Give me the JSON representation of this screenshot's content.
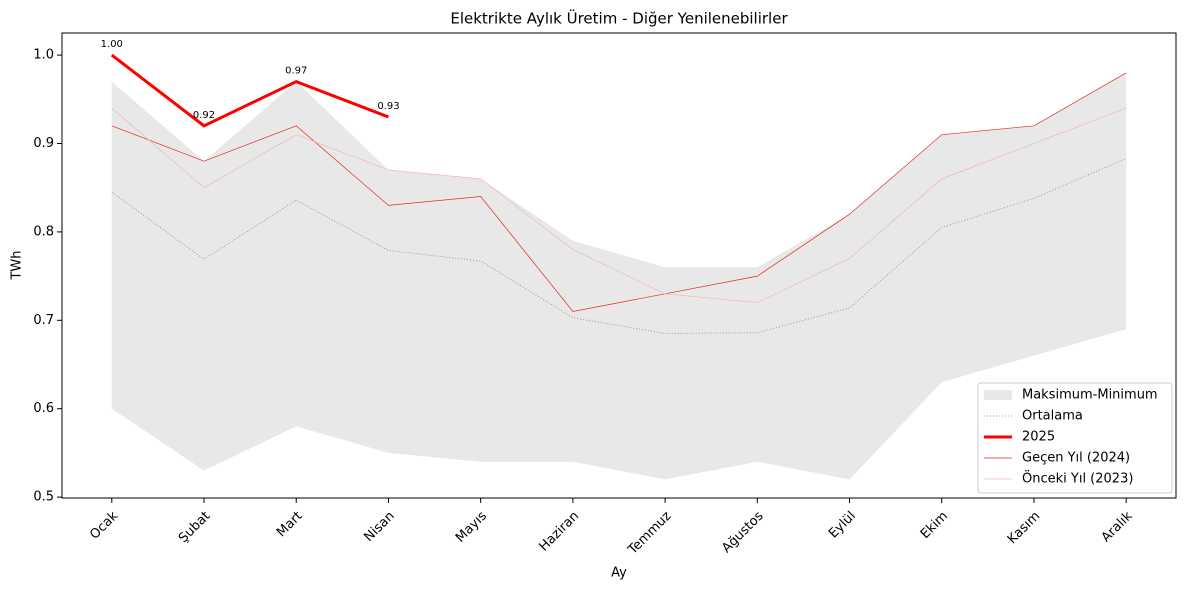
{
  "chart_data": {
    "type": "line",
    "title": "Elektrikte Aylık Üretim - Diğer Yenilenebilirler",
    "x_label": "Ay",
    "y_label": "TWh",
    "categories": [
      "Ocak",
      "Şubat",
      "Mart",
      "Nisan",
      "Mayıs",
      "Haziran",
      "Temmuz",
      "Ağustos",
      "Eylül",
      "Ekim",
      "Kasım",
      "Aralık"
    ],
    "band": {
      "name": "Maksimum-Minimum",
      "color": "#d9d9d9",
      "upper": [
        0.97,
        0.88,
        0.97,
        0.87,
        0.86,
        0.79,
        0.76,
        0.76,
        0.82,
        0.91,
        0.92,
        0.98
      ],
      "lower": [
        0.6,
        0.53,
        0.58,
        0.55,
        0.54,
        0.54,
        0.52,
        0.54,
        0.52,
        0.63,
        0.66,
        0.69
      ]
    },
    "series": [
      {
        "name": "Ortalama",
        "color": "#999999",
        "style": "dotted",
        "width": 1,
        "values": [
          0.845,
          0.769,
          0.836,
          0.779,
          0.767,
          0.703,
          0.685,
          0.686,
          0.714,
          0.805,
          0.838,
          0.883
        ]
      },
      {
        "name": "2025",
        "color": "#ff0000",
        "style": "solid",
        "width": 3,
        "values": [
          1.0,
          0.92,
          0.97,
          0.93,
          null,
          null,
          null,
          null,
          null,
          null,
          null,
          null
        ],
        "value_labels": [
          "1.00",
          "0.92",
          "0.97",
          "0.93",
          null,
          null,
          null,
          null,
          null,
          null,
          null,
          null
        ]
      },
      {
        "name": "Geçen Yıl (2024)",
        "color": "#e32a1c",
        "style": "solid",
        "width": 0.7,
        "values": [
          0.92,
          0.88,
          0.92,
          0.83,
          0.84,
          0.71,
          0.73,
          0.75,
          0.82,
          0.91,
          0.92,
          0.98
        ]
      },
      {
        "name": "Önceki Yıl (2023)",
        "color": "#f2b8b8",
        "style": "solid",
        "width": 0.7,
        "values": [
          0.94,
          0.85,
          0.91,
          0.87,
          0.86,
          0.78,
          0.73,
          0.72,
          0.77,
          0.86,
          0.9,
          0.94
        ]
      }
    ],
    "ylim": [
      0.499,
      1.025
    ],
    "yticks": [
      {
        "value": 0.5,
        "label": "0.5"
      },
      {
        "value": 0.6,
        "label": "0.6"
      },
      {
        "value": 0.7,
        "label": "0.7"
      },
      {
        "value": 0.8,
        "label": "0.8"
      },
      {
        "value": 0.9,
        "label": "0.9"
      },
      {
        "value": 1.0,
        "label": "1.0"
      }
    ],
    "legend": "lower right",
    "grid": false
  }
}
